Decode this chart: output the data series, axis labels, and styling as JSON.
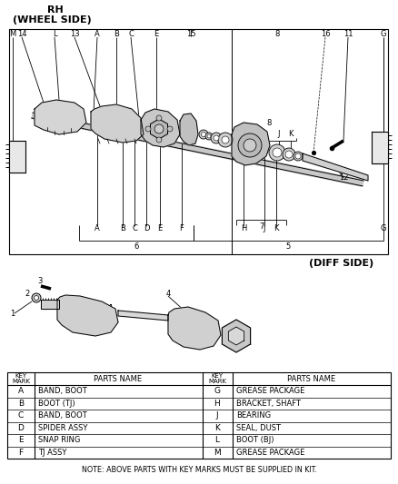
{
  "title_line1": "RH",
  "title_line2": "(WHEEL SIDE)",
  "diff_side_label": "(DIFF SIDE)",
  "bg_color": "#ffffff",
  "table_left_keys": [
    "A",
    "B",
    "C",
    "D",
    "E",
    "F"
  ],
  "table_left_parts": [
    "BAND, BOOT",
    "BOOT (TJ)",
    "BAND, BOOT",
    "SPIDER ASSY",
    "SNAP RING",
    "TJ ASSY"
  ],
  "table_right_keys": [
    "G",
    "H",
    "J",
    "K",
    "L",
    "M"
  ],
  "table_right_parts": [
    "GREASE PACKAGE",
    "BRACKET, SHAFT",
    "BEARING",
    "SEAL, DUST",
    "BOOT (BJ)",
    "GREASE PACKAGE"
  ],
  "note": "NOTE: ABOVE PARTS WITH KEY MARKS MUST BE SUPPLIED IN KIT.",
  "figsize": [
    4.38,
    5.33
  ],
  "dpi": 100
}
